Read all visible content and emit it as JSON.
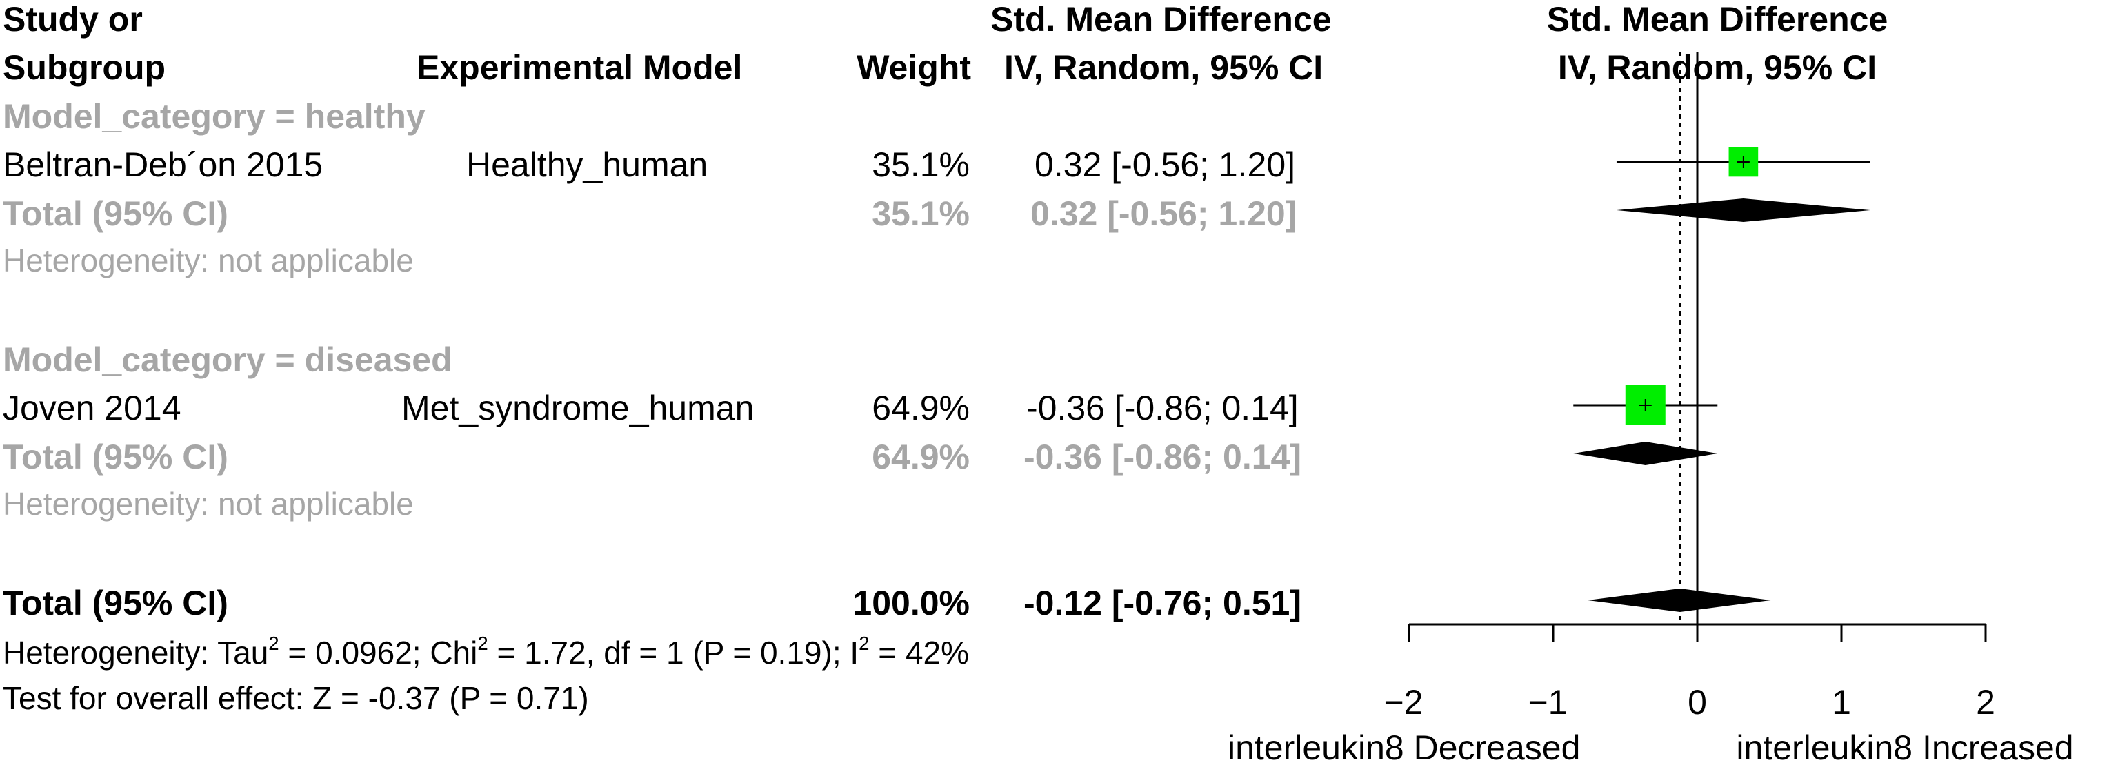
{
  "header": {
    "study_line1": "Study or",
    "study_line2": "Subgroup",
    "model": "Experimental Model",
    "weight": "Weight",
    "smd_line1": "Std. Mean Difference",
    "smd_line2": "IV, Random, 95% CI",
    "plot_line1": "Std. Mean Difference",
    "plot_line2": "IV, Random, 95% CI"
  },
  "groups": [
    {
      "label": "Model_category = healthy",
      "study": {
        "name": "Beltran-Deb´on 2015",
        "model": "Healthy_human",
        "weight": "35.1%",
        "ci_text": "0.32 [-0.56; 1.20]"
      },
      "total": {
        "label": "Total (95% CI)",
        "weight": "35.1%",
        "ci_text": "0.32 [-0.56; 1.20]"
      },
      "heterogeneity": "Heterogeneity: not applicable"
    },
    {
      "label": "Model_category = diseased",
      "study": {
        "name": "Joven 2014",
        "model": "Met_syndrome_human",
        "weight": "64.9%",
        "ci_text": "-0.36 [-0.86; 0.14]"
      },
      "total": {
        "label": "Total (95% CI)",
        "weight": "64.9%",
        "ci_text": "-0.36 [-0.86; 0.14]"
      },
      "heterogeneity": "Heterogeneity: not applicable"
    }
  ],
  "overall": {
    "label": "Total (95% CI)",
    "weight": "100.0%",
    "ci_text": "-0.12 [-0.76; 0.51]",
    "het_prefix": "Heterogeneity: Tau",
    "het_tau_val": " = 0.0962; Chi",
    "het_chi_val": " = 1.72, df = 1 (P = 0.19); I",
    "het_i_val": " = 42%",
    "sup2": "2",
    "test": "Test for overall effect: Z = -0.37 (P = 0.71)"
  },
  "axis": {
    "left_label": "interleukin8 Decreased",
    "right_label": "interleukin8 Increased"
  },
  "colors": {
    "study_square": "#00ee00",
    "diamond": "#000000",
    "subgroup_text": "#a6a6a6"
  },
  "chart_data": {
    "type": "forest",
    "x_ticks": [
      -2,
      -1,
      0,
      1,
      2
    ],
    "xlim": [
      -2,
      2
    ],
    "null_line": 0,
    "pooled_reference": -0.12,
    "studies": [
      {
        "name": "Beltran-Deb´on 2015",
        "estimate": 0.32,
        "lower": -0.56,
        "upper": 1.2,
        "weight": 35.1
      },
      {
        "name": "Joven 2014",
        "estimate": -0.36,
        "lower": -0.86,
        "upper": 0.14,
        "weight": 64.9
      }
    ],
    "subgroup_totals": [
      {
        "group": "Model_category = healthy",
        "estimate": 0.32,
        "lower": -0.56,
        "upper": 1.2
      },
      {
        "group": "Model_category = diseased",
        "estimate": -0.36,
        "lower": -0.86,
        "upper": 0.14
      }
    ],
    "overall": {
      "estimate": -0.12,
      "lower": -0.76,
      "upper": 0.51
    },
    "heterogeneity": {
      "tau2": 0.0962,
      "chi2": 1.72,
      "df": 1,
      "p": 0.19,
      "i2": 42
    },
    "overall_test": {
      "z": -0.37,
      "p": 0.71
    }
  }
}
